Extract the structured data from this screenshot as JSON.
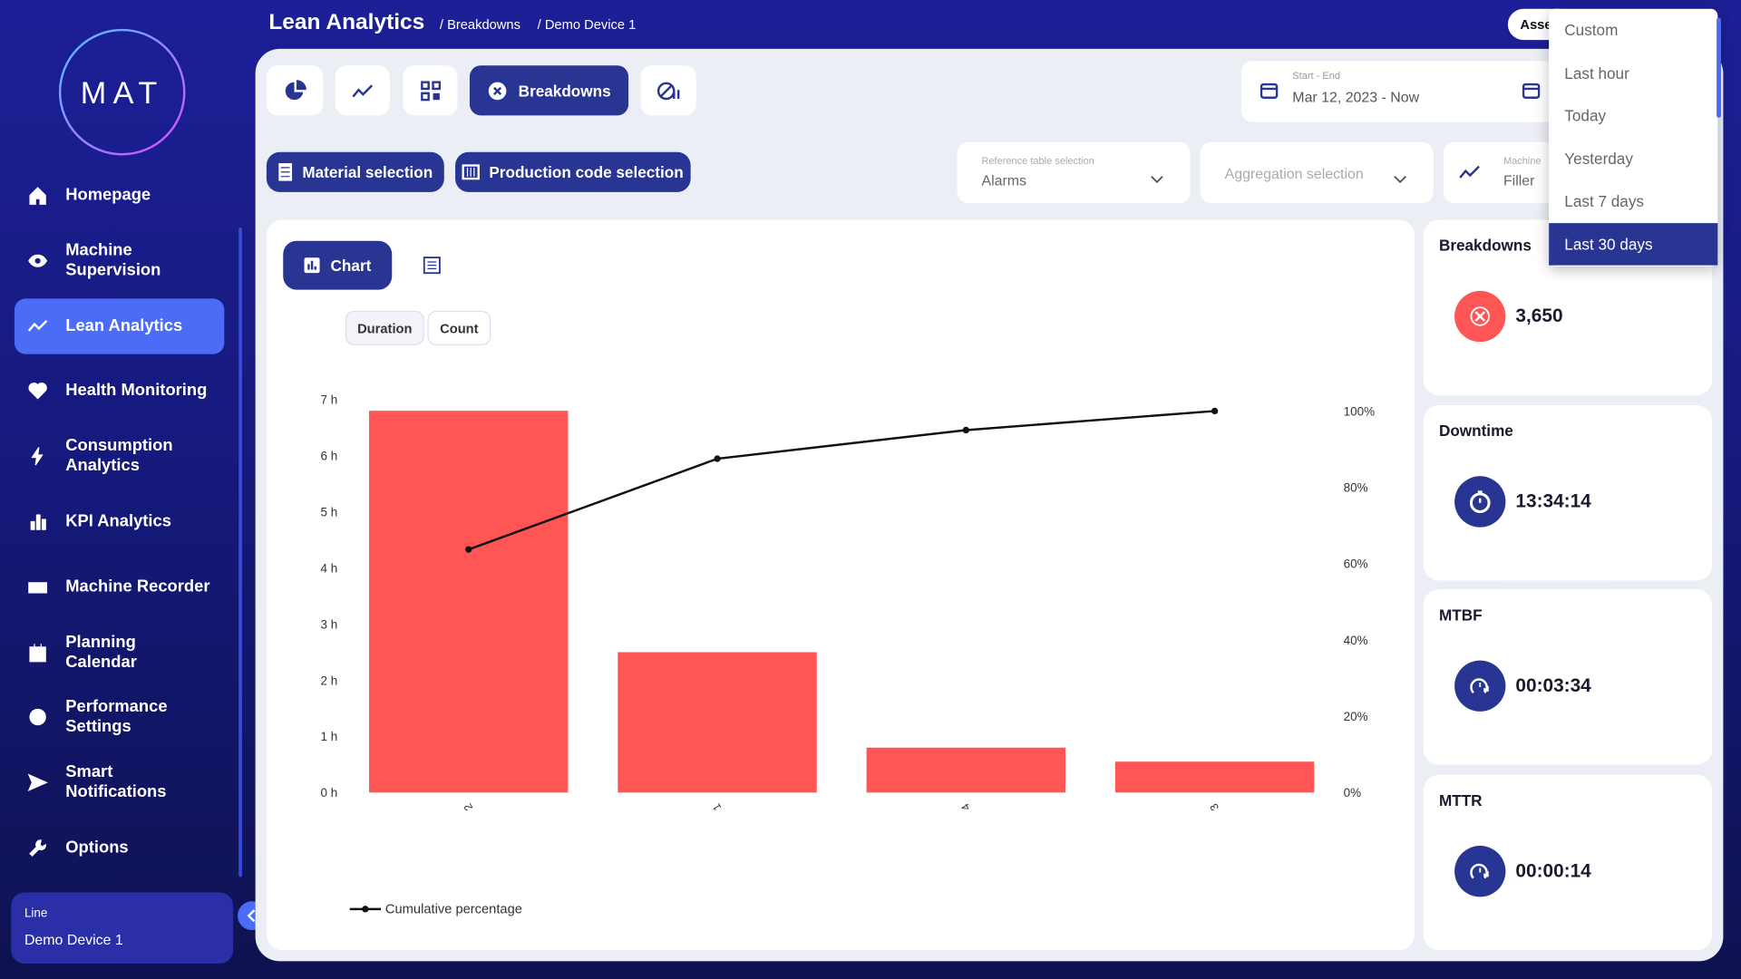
{
  "header": {
    "title": "Lean Analytics",
    "crumbs": [
      "/ Breakdowns",
      "/ Demo Device 1"
    ],
    "asset_button": "Asse"
  },
  "sidebar": {
    "logo": "MAT",
    "nav": [
      "Homepage",
      "Machine Supervision",
      "Lean Analytics",
      "Health Monitoring",
      "Consumption Analytics",
      "KPI Analytics",
      "Machine Recorder",
      "Planning Calendar",
      "Performance Settings",
      "Smart Notifications",
      "Options"
    ],
    "active": 2,
    "line_label": "Line",
    "line_value": "Demo Device 1"
  },
  "toolbar": {
    "tab": "Breakdowns",
    "date_label": "Start - End",
    "date_value": "Mar 12, 2023 - Now",
    "buttons": [
      "Material selection",
      "Production code selection"
    ],
    "selects": [
      {
        "label": "Reference table selection",
        "value": "Alarms"
      },
      {
        "placeholder": "Aggregation selection"
      },
      {
        "label": "Machine",
        "value": "Filler"
      }
    ]
  },
  "chart_panel": {
    "view_tab": "Chart",
    "toggles": [
      "Duration",
      "Count"
    ]
  },
  "chart_data": {
    "type": "bar",
    "categories": [
      "2",
      "1",
      "4",
      "3"
    ],
    "series": [
      {
        "color": "#ff5555",
        "values": [
          6.8,
          2.5,
          0.8,
          0.55
        ]
      },
      {
        "name": "Cumulative percentage",
        "type": "line",
        "axis": "y2",
        "color": "#111111",
        "values": [
          63.7,
          87.5,
          95,
          100
        ]
      }
    ],
    "ylim": [
      0,
      7
    ],
    "yticks": [
      {
        "value": 0,
        "label": "0 h"
      },
      {
        "value": 1,
        "label": "1 h"
      },
      {
        "value": 2,
        "label": "2 h"
      },
      {
        "value": 3,
        "label": "3 h"
      },
      {
        "value": 4,
        "label": "4 h"
      },
      {
        "value": 5,
        "label": "5 h"
      },
      {
        "value": 6,
        "label": "6 h"
      },
      {
        "value": 7,
        "label": "7 h"
      }
    ],
    "y2lim": [
      0,
      103
    ],
    "y2ticks": [
      {
        "value": 0,
        "label": "0%"
      },
      {
        "value": 20,
        "label": "20%"
      },
      {
        "value": 40,
        "label": "40%"
      },
      {
        "value": 60,
        "label": "60%"
      },
      {
        "value": 80,
        "label": "80%"
      },
      {
        "value": 100,
        "label": "100%"
      }
    ],
    "grid": false,
    "legend": "bottom-left"
  },
  "kpis": [
    {
      "title": "Breakdowns",
      "value": "3,650"
    },
    {
      "title": "Downtime",
      "value": "13:34:14"
    },
    {
      "title": "MTBF",
      "value": "00:03:34"
    },
    {
      "title": "MTTR",
      "value": "00:00:14"
    }
  ],
  "dropdown": {
    "options": [
      "Custom",
      "Last hour",
      "Today",
      "Yesterday",
      "Last 7 days",
      "Last 30 days"
    ],
    "selected": 5
  }
}
